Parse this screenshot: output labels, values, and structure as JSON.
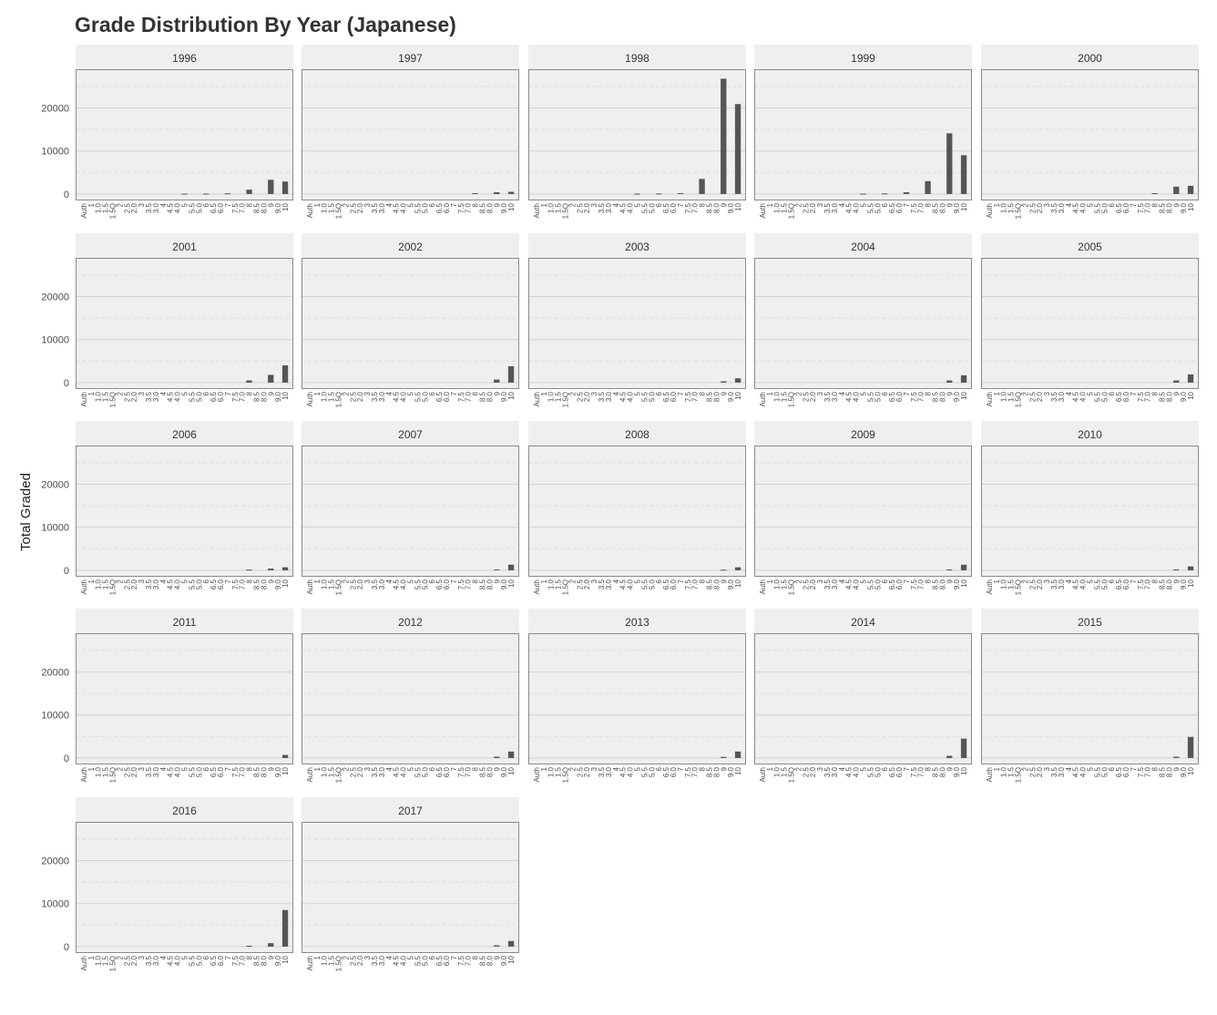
{
  "chart_data": {
    "type": "bar",
    "title": "Grade Distribution By Year (Japanese)",
    "xlabel": "",
    "ylabel": "Total Graded",
    "ylim": [
      -1500,
      29000
    ],
    "yticks": [
      0,
      10000,
      20000
    ],
    "grid": "on",
    "facets_by": "year",
    "categories": [
      "Auth",
      "1",
      "1.0",
      "1.5",
      "1.5Q",
      "2",
      "2.5",
      "2.0",
      "3",
      "3.5",
      "3.0",
      "4",
      "4.5",
      "4.0",
      "5",
      "5.5",
      "5.0",
      "6",
      "6.5",
      "6.0",
      "7",
      "7.5",
      "7.0",
      "8",
      "8.5",
      "8.0",
      "9",
      "9.0",
      "10"
    ],
    "facets": [
      {
        "name": "1996",
        "values": [
          0,
          0,
          0,
          0,
          0,
          0,
          0,
          0,
          0,
          0,
          0,
          0,
          0,
          0,
          80,
          0,
          0,
          100,
          0,
          0,
          150,
          0,
          0,
          1000,
          0,
          0,
          3300,
          0,
          2900
        ]
      },
      {
        "name": "1997",
        "values": [
          0,
          0,
          0,
          0,
          0,
          0,
          0,
          0,
          0,
          0,
          0,
          0,
          0,
          0,
          0,
          0,
          0,
          0,
          0,
          0,
          0,
          0,
          0,
          200,
          0,
          0,
          400,
          0,
          500
        ]
      },
      {
        "name": "1998",
        "values": [
          0,
          0,
          0,
          0,
          0,
          0,
          0,
          0,
          0,
          0,
          0,
          0,
          0,
          0,
          80,
          0,
          0,
          120,
          0,
          0,
          200,
          0,
          0,
          3500,
          0,
          0,
          26800,
          0,
          20900
        ]
      },
      {
        "name": "1999",
        "values": [
          0,
          0,
          0,
          0,
          0,
          0,
          0,
          0,
          0,
          0,
          0,
          0,
          0,
          0,
          80,
          0,
          0,
          120,
          0,
          0,
          400,
          0,
          0,
          3000,
          0,
          0,
          14100,
          0,
          9000
        ]
      },
      {
        "name": "2000",
        "values": [
          0,
          0,
          0,
          0,
          0,
          0,
          0,
          0,
          0,
          0,
          0,
          0,
          0,
          0,
          0,
          0,
          0,
          0,
          0,
          0,
          0,
          0,
          0,
          200,
          0,
          0,
          1700,
          0,
          1900
        ]
      },
      {
        "name": "2001",
        "values": [
          0,
          0,
          0,
          0,
          0,
          0,
          0,
          0,
          0,
          0,
          0,
          0,
          0,
          0,
          0,
          0,
          0,
          0,
          0,
          0,
          0,
          0,
          0,
          500,
          0,
          0,
          1800,
          0,
          4000
        ]
      },
      {
        "name": "2002",
        "values": [
          0,
          0,
          0,
          0,
          0,
          0,
          0,
          0,
          0,
          0,
          0,
          0,
          0,
          0,
          0,
          0,
          0,
          0,
          0,
          0,
          0,
          0,
          0,
          0,
          0,
          0,
          700,
          0,
          3800
        ]
      },
      {
        "name": "2003",
        "values": [
          0,
          0,
          0,
          0,
          0,
          0,
          0,
          0,
          0,
          0,
          0,
          0,
          0,
          0,
          0,
          0,
          0,
          0,
          0,
          0,
          0,
          0,
          0,
          0,
          0,
          0,
          300,
          0,
          1000
        ]
      },
      {
        "name": "2004",
        "values": [
          0,
          0,
          0,
          0,
          0,
          0,
          0,
          0,
          0,
          0,
          0,
          0,
          0,
          0,
          0,
          0,
          0,
          0,
          0,
          0,
          0,
          0,
          0,
          0,
          0,
          0,
          500,
          0,
          1700
        ]
      },
      {
        "name": "2005",
        "values": [
          0,
          0,
          0,
          0,
          0,
          0,
          0,
          0,
          0,
          0,
          0,
          0,
          0,
          0,
          0,
          0,
          0,
          0,
          0,
          0,
          0,
          0,
          0,
          0,
          0,
          0,
          500,
          0,
          1900
        ]
      },
      {
        "name": "2006",
        "values": [
          0,
          0,
          0,
          0,
          0,
          0,
          0,
          0,
          0,
          0,
          0,
          0,
          0,
          0,
          0,
          0,
          0,
          0,
          0,
          0,
          0,
          0,
          0,
          150,
          0,
          0,
          400,
          0,
          700
        ]
      },
      {
        "name": "2007",
        "values": [
          0,
          0,
          0,
          0,
          0,
          0,
          0,
          0,
          0,
          0,
          0,
          0,
          0,
          0,
          0,
          0,
          0,
          0,
          0,
          0,
          0,
          0,
          0,
          0,
          0,
          0,
          200,
          0,
          1300
        ]
      },
      {
        "name": "2008",
        "values": [
          0,
          0,
          0,
          0,
          0,
          0,
          0,
          0,
          0,
          0,
          0,
          0,
          0,
          0,
          0,
          0,
          0,
          0,
          0,
          0,
          0,
          0,
          0,
          0,
          0,
          0,
          150,
          0,
          700
        ]
      },
      {
        "name": "2009",
        "values": [
          0,
          0,
          0,
          0,
          0,
          0,
          0,
          0,
          0,
          0,
          0,
          0,
          0,
          0,
          0,
          0,
          0,
          0,
          0,
          0,
          0,
          0,
          0,
          0,
          0,
          0,
          200,
          0,
          1300
        ]
      },
      {
        "name": "2010",
        "values": [
          0,
          0,
          0,
          0,
          0,
          0,
          0,
          0,
          0,
          0,
          0,
          0,
          0,
          0,
          0,
          0,
          0,
          0,
          0,
          0,
          0,
          0,
          0,
          0,
          0,
          0,
          200,
          0,
          900
        ]
      },
      {
        "name": "2011",
        "values": [
          0,
          0,
          0,
          0,
          0,
          0,
          0,
          0,
          0,
          0,
          0,
          0,
          0,
          0,
          0,
          0,
          0,
          0,
          0,
          0,
          0,
          0,
          0,
          0,
          0,
          0,
          0,
          0,
          700
        ]
      },
      {
        "name": "2012",
        "values": [
          0,
          0,
          0,
          0,
          0,
          0,
          0,
          0,
          0,
          0,
          0,
          0,
          0,
          0,
          0,
          0,
          0,
          0,
          0,
          0,
          0,
          0,
          0,
          0,
          0,
          0,
          300,
          0,
          1500
        ]
      },
      {
        "name": "2013",
        "values": [
          0,
          0,
          0,
          0,
          0,
          0,
          0,
          0,
          0,
          0,
          0,
          0,
          0,
          0,
          0,
          0,
          0,
          0,
          0,
          0,
          0,
          0,
          0,
          0,
          0,
          0,
          250,
          0,
          1500
        ]
      },
      {
        "name": "2014",
        "values": [
          0,
          0,
          0,
          0,
          0,
          0,
          0,
          0,
          0,
          0,
          0,
          0,
          0,
          0,
          0,
          0,
          0,
          0,
          0,
          0,
          0,
          0,
          0,
          0,
          0,
          0,
          500,
          0,
          4500
        ]
      },
      {
        "name": "2015",
        "values": [
          0,
          0,
          0,
          0,
          0,
          0,
          0,
          0,
          0,
          0,
          0,
          0,
          0,
          0,
          0,
          0,
          0,
          0,
          0,
          0,
          0,
          0,
          0,
          0,
          0,
          0,
          300,
          0,
          4900
        ]
      },
      {
        "name": "2016",
        "values": [
          0,
          0,
          0,
          0,
          0,
          0,
          0,
          0,
          0,
          0,
          0,
          0,
          0,
          0,
          0,
          0,
          0,
          0,
          0,
          0,
          0,
          0,
          0,
          200,
          0,
          0,
          800,
          0,
          8500
        ]
      },
      {
        "name": "2017",
        "values": [
          0,
          0,
          0,
          0,
          0,
          0,
          0,
          0,
          0,
          0,
          0,
          0,
          0,
          0,
          0,
          0,
          0,
          0,
          0,
          0,
          0,
          0,
          0,
          0,
          0,
          0,
          300,
          0,
          1300
        ]
      }
    ]
  },
  "colors": {
    "panel_bg": "#efefef",
    "strip_bg": "#efefef",
    "panel_border": "#8a8a8a",
    "grid_major": "#d2d2d2",
    "grid_minor": "#dedede",
    "bar": "#555555"
  }
}
